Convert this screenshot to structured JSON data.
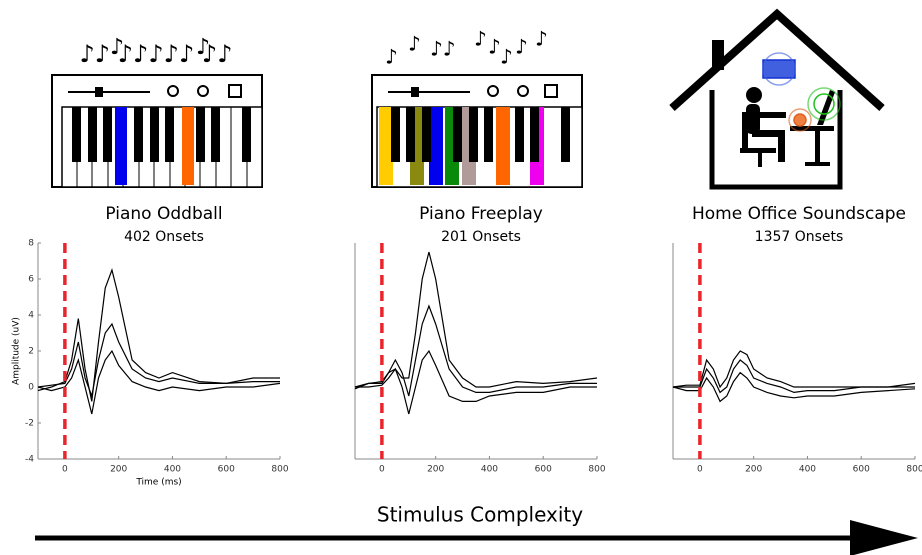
{
  "chart_data": [
    {
      "type": "line",
      "title": "Piano Oddball",
      "subtitle": "402 Onsets",
      "y_label": "Amplitude (uV)",
      "x_label": "Time (ms)",
      "x": [
        -100,
        -50,
        0,
        25,
        50,
        75,
        100,
        125,
        150,
        175,
        200,
        250,
        300,
        350,
        400,
        500,
        600,
        700,
        800
      ],
      "series": [
        {
          "color": "#000000",
          "values": [
            -0.2,
            0,
            0.3,
            1.5,
            3.8,
            1,
            -0.8,
            2.5,
            5.5,
            6.5,
            5,
            1.5,
            0.8,
            0.5,
            0.8,
            0.3,
            0.2,
            0.5,
            0.5
          ]
        },
        {
          "color": "#000000",
          "values": [
            0,
            0.1,
            0.2,
            1,
            2.5,
            0.5,
            -0.5,
            1.5,
            3,
            3.5,
            2.5,
            1,
            0.5,
            0.3,
            0.5,
            0.2,
            0.2,
            0.3,
            0.3
          ]
        },
        {
          "color": "#000000",
          "values": [
            0,
            -0.2,
            0,
            0.5,
            1.5,
            0,
            -1.5,
            0.5,
            1.5,
            2,
            1.2,
            0.3,
            0,
            -0.2,
            0,
            -0.2,
            0,
            0,
            0.2
          ]
        }
      ],
      "xlim": [
        -100,
        800
      ],
      "xticks": [
        0,
        200,
        400,
        600,
        800
      ],
      "ylim": [
        -4,
        8
      ],
      "yticks": [
        -4,
        -2,
        0,
        2,
        4,
        6,
        8
      ],
      "vline": 0,
      "vline_color": "#e8262b"
    },
    {
      "type": "line",
      "title": "Piano Freeplay",
      "subtitle": "201 Onsets",
      "x": [
        -100,
        -50,
        0,
        25,
        50,
        75,
        100,
        125,
        150,
        175,
        200,
        250,
        300,
        350,
        400,
        500,
        600,
        700,
        800
      ],
      "series": [
        {
          "color": "#000000",
          "values": [
            -0.1,
            0.2,
            0.3,
            0.8,
            1,
            0.5,
            0.5,
            3,
            6,
            7.5,
            6,
            1.5,
            0.5,
            0,
            0,
            0.3,
            0.2,
            0.3,
            0.5
          ]
        },
        {
          "color": "#000000",
          "values": [
            0,
            0.2,
            0.2,
            0.8,
            1.5,
            0.8,
            -0.5,
            1.5,
            3.5,
            4.5,
            3.5,
            1,
            0,
            -0.3,
            -0.3,
            0,
            0,
            0.2,
            0.2
          ]
        },
        {
          "color": "#000000",
          "values": [
            0,
            0,
            0.1,
            0.5,
            1,
            0,
            -1.5,
            0,
            1.5,
            2,
            1.2,
            -0.5,
            -0.8,
            -0.8,
            -0.5,
            -0.3,
            -0.3,
            0,
            0
          ]
        }
      ],
      "xlim": [
        -100,
        800
      ],
      "xticks": [
        0,
        200,
        400,
        600,
        800
      ],
      "ylim": [
        -4,
        8
      ],
      "vline": 0,
      "vline_color": "#e8262b"
    },
    {
      "type": "line",
      "title": "Home Office Soundscape",
      "subtitle": "1357 Onsets",
      "x": [
        -100,
        -50,
        0,
        25,
        50,
        75,
        100,
        125,
        150,
        175,
        200,
        250,
        300,
        350,
        400,
        500,
        600,
        700,
        800
      ],
      "series": [
        {
          "color": "#000000",
          "values": [
            0,
            0.1,
            0.1,
            1.5,
            1,
            0,
            0.5,
            1.5,
            2,
            1.8,
            1,
            0.5,
            0.3,
            0,
            0,
            0,
            0,
            0,
            0.2
          ]
        },
        {
          "color": "#000000",
          "values": [
            0,
            0,
            0,
            1,
            0.5,
            -0.3,
            0,
            1,
            1.5,
            1.2,
            0.5,
            0.2,
            0,
            -0.3,
            -0.2,
            -0.2,
            0,
            0,
            0
          ]
        },
        {
          "color": "#000000",
          "values": [
            0,
            -0.2,
            -0.2,
            0.5,
            0,
            -0.8,
            -0.5,
            0.3,
            0.8,
            0.5,
            0,
            -0.3,
            -0.5,
            -0.6,
            -0.5,
            -0.5,
            -0.3,
            -0.2,
            -0.1
          ]
        }
      ],
      "xlim": [
        -100,
        800
      ],
      "xticks": [
        0,
        200,
        400,
        600,
        800
      ],
      "ylim": [
        -4,
        8
      ],
      "vline": 0,
      "vline_color": "#e8262b"
    }
  ],
  "axis_arrow": {
    "label": "Stimulus Complexity"
  }
}
